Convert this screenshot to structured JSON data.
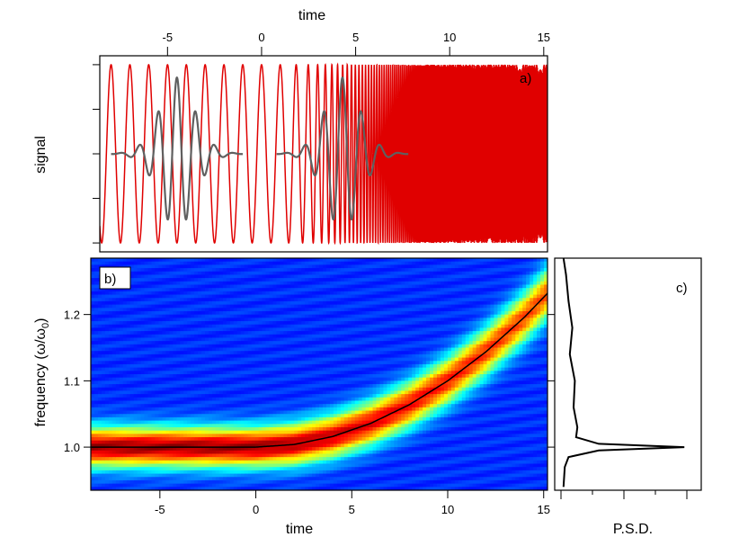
{
  "chart_data": [
    {
      "panel": "a",
      "type": "line",
      "panel_label": "a)",
      "xlabel": "time",
      "ylabel": "signal",
      "xlim": [
        -8.6,
        15.2
      ],
      "ylim": [
        -1.1,
        1.1
      ],
      "x_ticks": [
        -5,
        0,
        5,
        10,
        15
      ],
      "x_axis_position": "top",
      "series": [
        {
          "role": "chirped-carrier",
          "color": "#e00000",
          "amplitude": 1.0,
          "base_frequency": 1.0,
          "chirp_start": 0.5,
          "chirp_rate": 0.2
        },
        {
          "role": "wavelet-packets",
          "color": "#606060",
          "amplitude": 0.45,
          "packet_centers": [
            -4.5,
            4.3
          ],
          "packet_width": 2.2,
          "frequency": 1.0
        }
      ]
    },
    {
      "panel": "b",
      "type": "heatmap",
      "panel_label": "b)",
      "xlabel": "time",
      "ylabel": "frequency (ω/ω",
      "ylabel_subscript": "0",
      "ylabel_suffix": ")",
      "xlim": [
        -8.6,
        15.2
      ],
      "ylim": [
        0.935,
        1.285
      ],
      "x_ticks": [
        -5,
        0,
        5,
        10,
        15
      ],
      "y_ticks": [
        "1.0",
        "1.1",
        "1.2"
      ],
      "y_tick_values": [
        1.0,
        1.1,
        1.2
      ],
      "colormap": [
        "#00007f",
        "#0000ff",
        "#007fff",
        "#00ffff",
        "#7fff7f",
        "#ffff00",
        "#ff7f00",
        "#ff0000",
        "#7f0000"
      ],
      "ridge": {
        "color": "#000000",
        "x": [
          -8.6,
          0,
          2,
          4,
          6,
          8,
          10,
          12,
          14,
          15.2
        ],
        "y": [
          1.0,
          1.0,
          1.004,
          1.016,
          1.036,
          1.064,
          1.1,
          1.144,
          1.196,
          1.232
        ]
      }
    },
    {
      "panel": "c",
      "type": "line",
      "panel_label": "c)",
      "xlabel": "P.S.D.",
      "ylim": [
        0.935,
        1.285
      ],
      "xlim": [
        0,
        1
      ],
      "series": [
        {
          "color": "#000000",
          "frequency": [
            0.94,
            0.97,
            0.985,
            0.995,
            1.0,
            1.005,
            1.015,
            1.03,
            1.06,
            1.1,
            1.14,
            1.18,
            1.22,
            1.26,
            1.285
          ],
          "psd": [
            0.02,
            0.03,
            0.06,
            0.3,
            0.98,
            0.3,
            0.12,
            0.13,
            0.1,
            0.11,
            0.07,
            0.09,
            0.06,
            0.04,
            0.02
          ]
        }
      ]
    }
  ]
}
